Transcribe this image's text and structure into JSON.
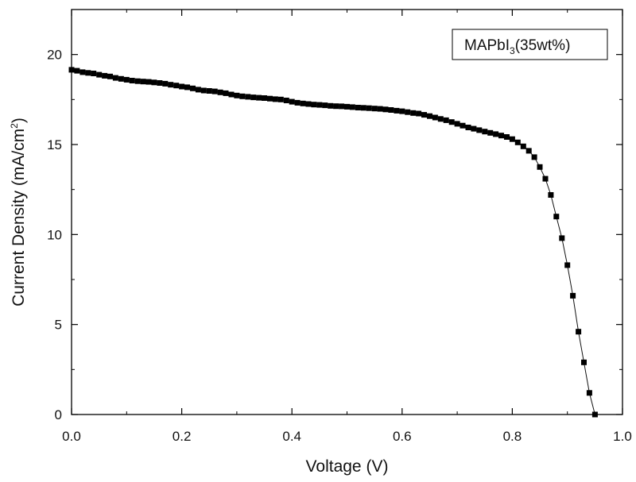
{
  "chart_data": {
    "type": "scatter",
    "title": "",
    "xlabel": "Voltage (V)",
    "ylabel": "Current Density (mA/cm2)",
    "ylabel_parts": {
      "main": "Current Density (mA/cm",
      "sup": "2",
      "tail": ")"
    },
    "xlim": [
      0.0,
      1.0
    ],
    "ylim": [
      0,
      22.5
    ],
    "x_ticks": [
      0.0,
      0.2,
      0.4,
      0.6,
      0.8,
      1.0
    ],
    "x_tick_labels": [
      "0.0",
      "0.2",
      "0.4",
      "0.6",
      "0.8",
      "1.0"
    ],
    "y_ticks": [
      0,
      5,
      10,
      15,
      20
    ],
    "y_tick_labels": [
      "0",
      "5",
      "10",
      "15",
      "20"
    ],
    "grid": false,
    "legend_position": "top-right",
    "legend": {
      "label": "MAPbI3(35wt%)",
      "parts": {
        "main": "MAPbI",
        "sub": "3",
        "tail": "(35wt%)"
      }
    },
    "series": [
      {
        "name": "MAPbI3(35wt%)",
        "marker": "square",
        "line": true,
        "x": [
          0.0,
          0.01,
          0.02,
          0.03,
          0.04,
          0.05,
          0.06,
          0.07,
          0.08,
          0.09,
          0.1,
          0.11,
          0.12,
          0.13,
          0.14,
          0.15,
          0.16,
          0.17,
          0.18,
          0.19,
          0.2,
          0.21,
          0.22,
          0.23,
          0.24,
          0.25,
          0.26,
          0.27,
          0.28,
          0.29,
          0.3,
          0.31,
          0.32,
          0.33,
          0.34,
          0.35,
          0.36,
          0.37,
          0.38,
          0.39,
          0.4,
          0.41,
          0.42,
          0.43,
          0.44,
          0.45,
          0.46,
          0.47,
          0.48,
          0.49,
          0.5,
          0.51,
          0.52,
          0.53,
          0.54,
          0.55,
          0.56,
          0.57,
          0.58,
          0.59,
          0.6,
          0.61,
          0.62,
          0.63,
          0.64,
          0.65,
          0.66,
          0.67,
          0.68,
          0.69,
          0.7,
          0.71,
          0.72,
          0.73,
          0.74,
          0.75,
          0.76,
          0.77,
          0.78,
          0.79,
          0.8,
          0.81,
          0.82,
          0.83,
          0.84,
          0.85,
          0.86,
          0.87,
          0.88,
          0.89,
          0.9,
          0.91,
          0.92,
          0.93,
          0.94,
          0.95
        ],
        "y": [
          19.15,
          19.1,
          19.02,
          18.98,
          18.95,
          18.88,
          18.82,
          18.78,
          18.7,
          18.65,
          18.6,
          18.55,
          18.52,
          18.5,
          18.48,
          18.45,
          18.42,
          18.38,
          18.32,
          18.28,
          18.22,
          18.18,
          18.12,
          18.05,
          18.0,
          17.98,
          17.95,
          17.9,
          17.85,
          17.78,
          17.72,
          17.68,
          17.65,
          17.62,
          17.6,
          17.58,
          17.55,
          17.52,
          17.5,
          17.45,
          17.38,
          17.32,
          17.28,
          17.25,
          17.22,
          17.2,
          17.18,
          17.15,
          17.13,
          17.12,
          17.1,
          17.08,
          17.05,
          17.04,
          17.02,
          17.0,
          16.98,
          16.95,
          16.92,
          16.88,
          16.85,
          16.8,
          16.75,
          16.72,
          16.65,
          16.58,
          16.5,
          16.42,
          16.35,
          16.25,
          16.15,
          16.05,
          15.95,
          15.88,
          15.8,
          15.72,
          15.65,
          15.58,
          15.5,
          15.42,
          15.3,
          15.12,
          14.9,
          14.65,
          14.3,
          13.75,
          13.1,
          12.2,
          11.0,
          9.8,
          8.3,
          6.6,
          4.6,
          2.9,
          1.2,
          0.0
        ]
      }
    ]
  }
}
